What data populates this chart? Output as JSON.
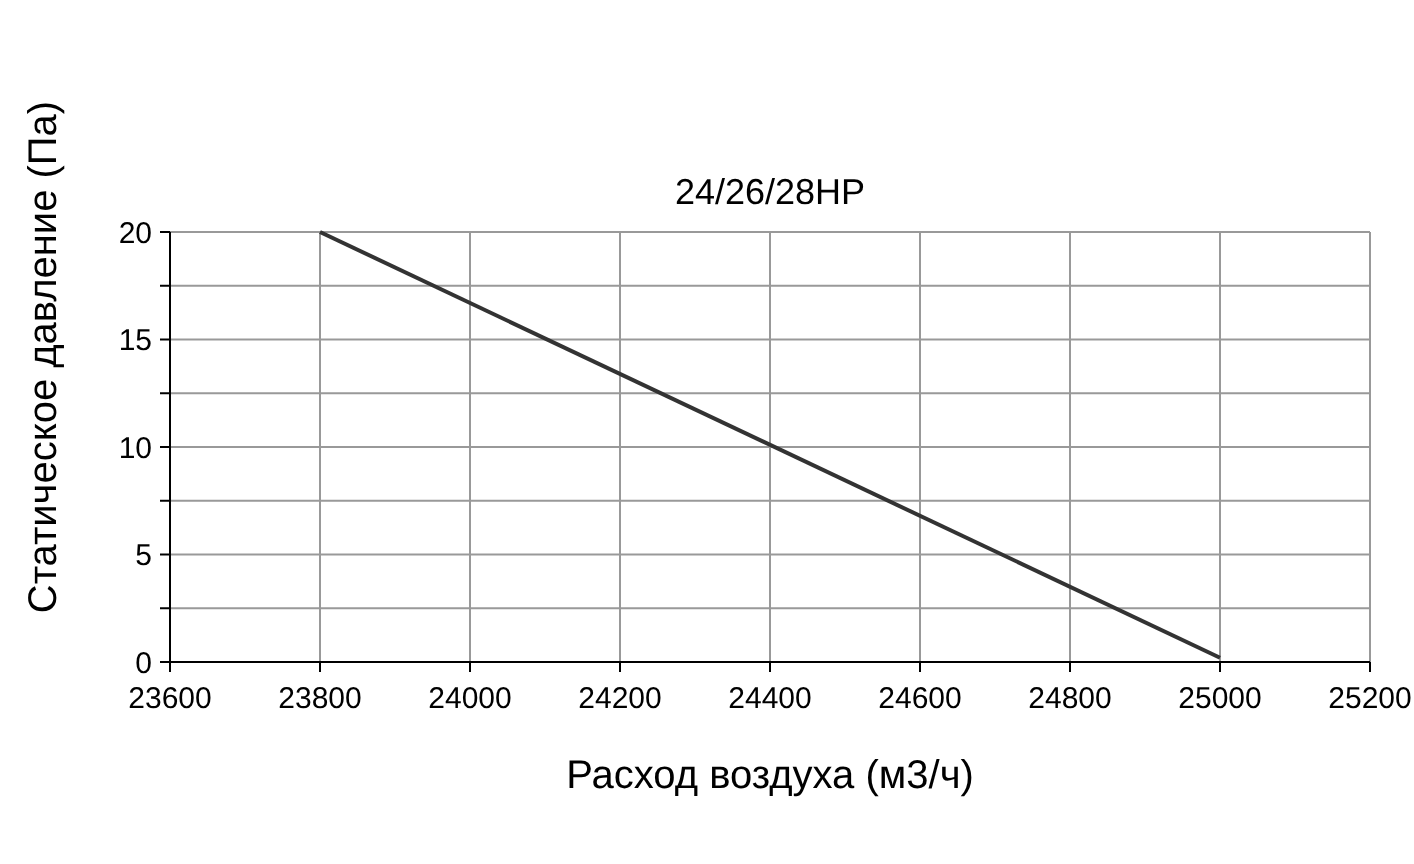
{
  "chart_data": {
    "type": "line",
    "title": "24/26/28HP",
    "xlabel": "Расход воздуха (м3/ч)",
    "ylabel": "Статическое давление (Па)",
    "x": [
      23800,
      25000
    ],
    "series": [
      {
        "color": "#333333",
        "values": [
          20,
          0.2
        ]
      }
    ],
    "xlim": [
      23600,
      25200
    ],
    "xticks": [
      23600,
      23800,
      24000,
      24200,
      24400,
      24600,
      24800,
      25000,
      25200
    ],
    "ylim": [
      0,
      20
    ],
    "yticks": [
      0,
      {
        "value": 2.5,
        "label": null
      },
      5,
      {
        "value": 7.5,
        "label": null
      },
      10,
      {
        "value": 12.5,
        "label": null
      },
      15,
      {
        "value": 17.5,
        "label": null
      },
      20
    ],
    "grid": true,
    "marker": "none",
    "line_style": "solid"
  }
}
